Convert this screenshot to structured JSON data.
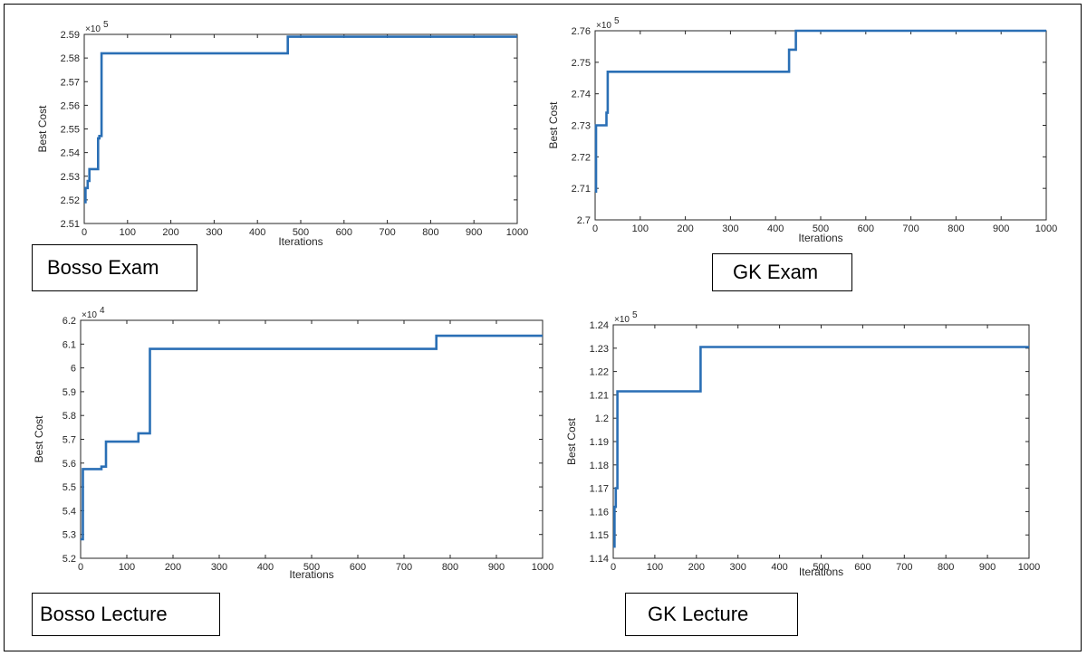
{
  "captions": [
    "Bosso Exam",
    "GK Exam",
    "Bosso Lecture",
    "GK Lecture"
  ],
  "colors": {
    "line": "#2a6fb5",
    "axis": "#262626"
  },
  "chart_data": [
    {
      "type": "line",
      "caption": "Bosso Exam",
      "xlabel": "Iterations",
      "ylabel": "Best Cost",
      "exponent_label": "×10",
      "exponent_power": "5",
      "xlim": [
        0,
        1000
      ],
      "ylim": [
        2.51,
        2.59
      ],
      "xticks": [
        0,
        100,
        200,
        300,
        400,
        500,
        600,
        700,
        800,
        900,
        1000
      ],
      "yticks": [
        "2.51",
        "2.52",
        "2.53",
        "2.54",
        "2.55",
        "2.56",
        "2.57",
        "2.58",
        "2.59"
      ],
      "series": [
        {
          "x": [
            0,
            3,
            3,
            8,
            8,
            12,
            12,
            32,
            32,
            35,
            35,
            40,
            40,
            470,
            470,
            1000
          ],
          "y": [
            2.519,
            2.519,
            2.525,
            2.525,
            2.528,
            2.528,
            2.533,
            2.533,
            2.546,
            2.546,
            2.547,
            2.547,
            2.582,
            2.582,
            2.589,
            2.589
          ]
        }
      ]
    },
    {
      "type": "line",
      "caption": "GK Exam",
      "xlabel": "Iterations",
      "ylabel": "Best Cost",
      "exponent_label": "×10",
      "exponent_power": "5",
      "xlim": [
        0,
        1000
      ],
      "ylim": [
        2.7,
        2.76
      ],
      "xticks": [
        0,
        100,
        200,
        300,
        400,
        500,
        600,
        700,
        800,
        900,
        1000
      ],
      "yticks": [
        "2.7",
        "2.71",
        "2.72",
        "2.73",
        "2.74",
        "2.75",
        "2.76"
      ],
      "series": [
        {
          "x": [
            0,
            2,
            2,
            25,
            25,
            28,
            28,
            430,
            430,
            445,
            445,
            1000
          ],
          "y": [
            2.709,
            2.709,
            2.73,
            2.73,
            2.734,
            2.734,
            2.747,
            2.747,
            2.754,
            2.754,
            2.76,
            2.76
          ]
        }
      ]
    },
    {
      "type": "line",
      "caption": "Bosso Lecture",
      "xlabel": "Iterations",
      "ylabel": "Best Cost",
      "exponent_label": "×10",
      "exponent_power": "4",
      "xlim": [
        0,
        1000
      ],
      "ylim": [
        5.2,
        6.2
      ],
      "xticks": [
        0,
        100,
        200,
        300,
        400,
        500,
        600,
        700,
        800,
        900,
        1000
      ],
      "yticks": [
        "5.2",
        "5.3",
        "5.4",
        "5.5",
        "5.6",
        "5.7",
        "5.8",
        "5.9",
        "6",
        "6.1",
        "6.2"
      ],
      "series": [
        {
          "x": [
            0,
            5,
            5,
            45,
            45,
            55,
            55,
            125,
            125,
            150,
            150,
            770,
            770,
            1000
          ],
          "y": [
            5.28,
            5.28,
            5.575,
            5.575,
            5.585,
            5.585,
            5.69,
            5.69,
            5.725,
            5.725,
            6.08,
            6.08,
            6.135,
            6.135
          ]
        }
      ]
    },
    {
      "type": "line",
      "caption": "GK Lecture",
      "xlabel": "Iterations",
      "ylabel": "Best Cost",
      "exponent_label": "×10",
      "exponent_power": "5",
      "xlim": [
        0,
        1000
      ],
      "ylim": [
        1.14,
        1.24
      ],
      "xticks": [
        0,
        100,
        200,
        300,
        400,
        500,
        600,
        700,
        800,
        900,
        1000
      ],
      "yticks": [
        "1.14",
        "1.15",
        "1.16",
        "1.17",
        "1.18",
        "1.19",
        "1.2",
        "1.21",
        "1.22",
        "1.23",
        "1.24"
      ],
      "series": [
        {
          "x": [
            0,
            3,
            3,
            6,
            6,
            10,
            10,
            210,
            210,
            1000
          ],
          "y": [
            1.145,
            1.145,
            1.162,
            1.162,
            1.17,
            1.17,
            1.2115,
            1.2115,
            1.2305,
            1.2305
          ]
        }
      ]
    }
  ]
}
